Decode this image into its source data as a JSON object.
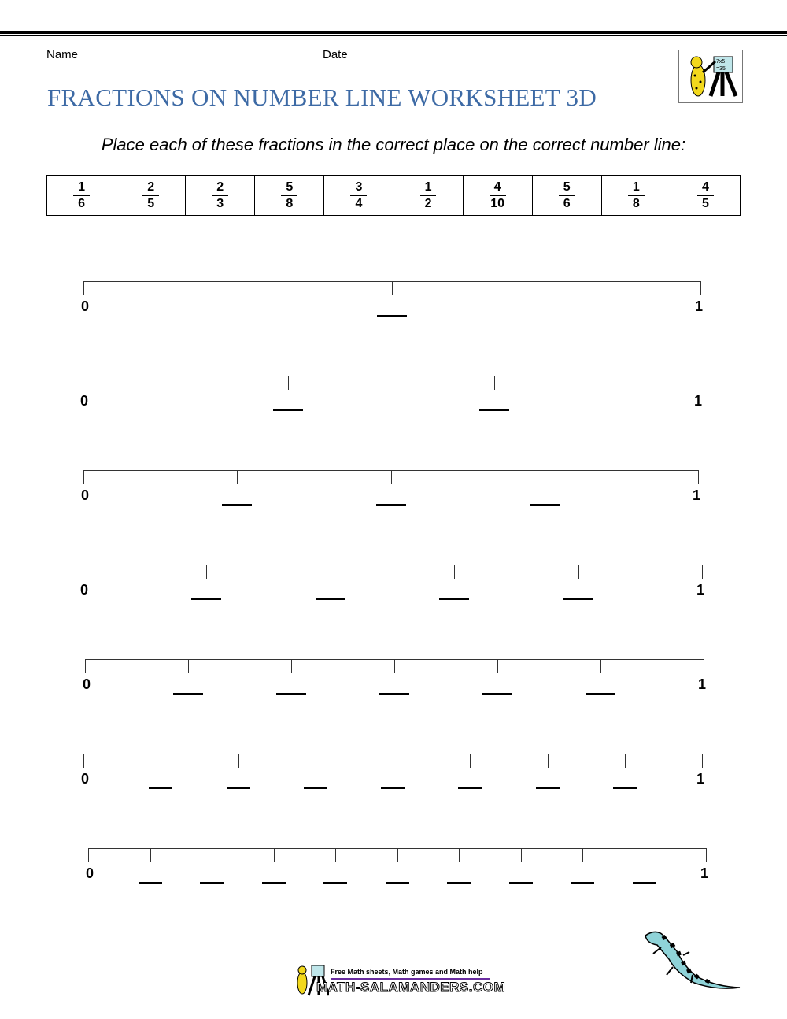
{
  "header": {
    "name_label": "Name",
    "date_label": "Date",
    "title": "FRACTIONS ON NUMBER LINE WORKSHEET 3D"
  },
  "instructions": "Place each of these fractions in the correct place on the correct number line:",
  "fractions": [
    {
      "n": "1",
      "d": "6"
    },
    {
      "n": "2",
      "d": "5"
    },
    {
      "n": "2",
      "d": "3"
    },
    {
      "n": "5",
      "d": "8"
    },
    {
      "n": "3",
      "d": "4"
    },
    {
      "n": "1",
      "d": "2"
    },
    {
      "n": "4",
      "d": "10"
    },
    {
      "n": "5",
      "d": "6"
    },
    {
      "n": "1",
      "d": "8"
    },
    {
      "n": "4",
      "d": "5"
    }
  ],
  "number_lines": [
    {
      "divisions": 2,
      "start": "0",
      "end": "1"
    },
    {
      "divisions": 3,
      "start": "0",
      "end": "1"
    },
    {
      "divisions": 4,
      "start": "0",
      "end": "1"
    },
    {
      "divisions": 5,
      "start": "0",
      "end": "1"
    },
    {
      "divisions": 6,
      "start": "0",
      "end": "1"
    },
    {
      "divisions": 8,
      "start": "0",
      "end": "1"
    },
    {
      "divisions": 10,
      "start": "0",
      "end": "1"
    }
  ],
  "footer": {
    "tagline": "Free Math sheets, Math games and Math help",
    "site": "MATH-SALAMANDERS.COM"
  },
  "colors": {
    "title": "#3d6aa5",
    "footer_bar": "#6a2ca0",
    "salamander": "#8fd3d8"
  }
}
